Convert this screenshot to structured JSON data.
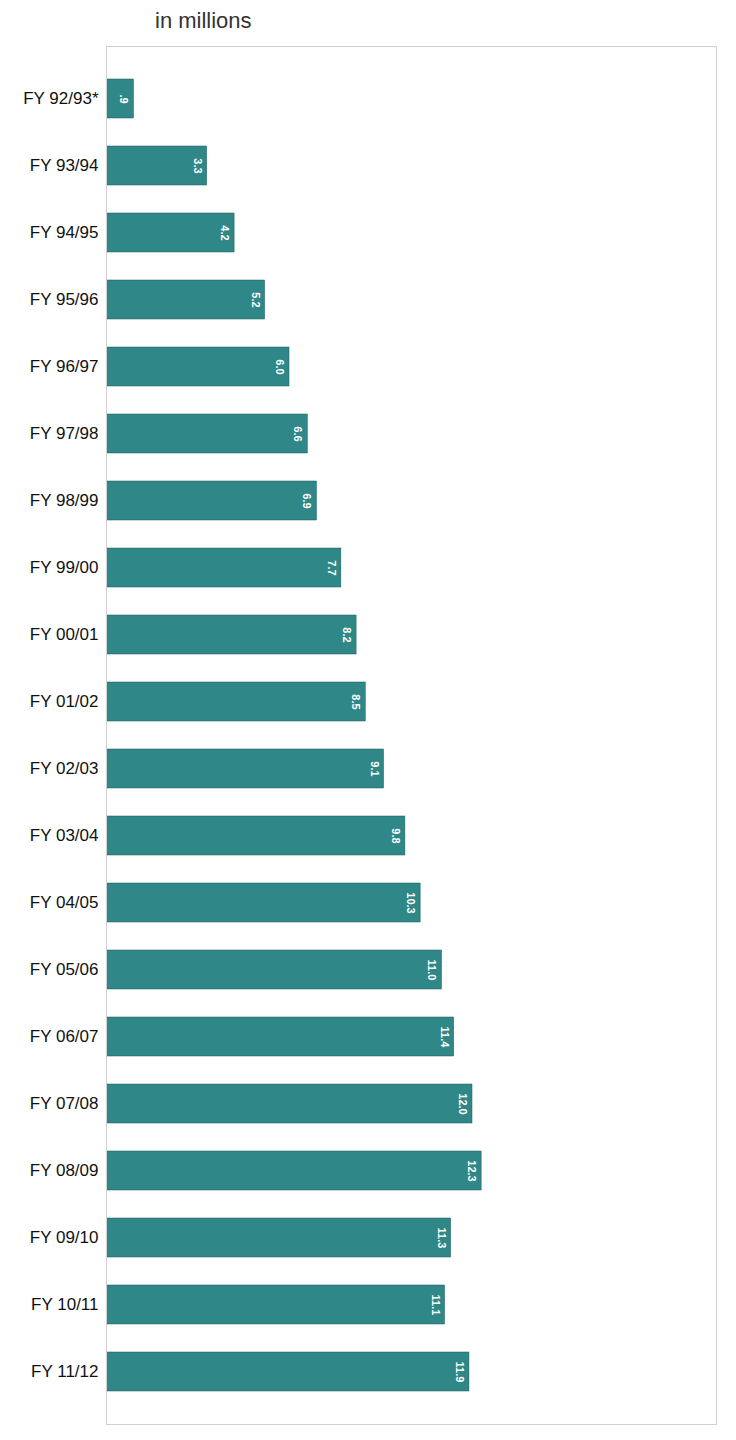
{
  "chart_data": {
    "type": "bar",
    "title": "in millions",
    "orientation": "horizontal",
    "categories": [
      "FY 92/93*",
      "FY 93/94",
      "FY 94/95",
      "FY 95/96",
      "FY 96/97",
      "FY 97/98",
      "FY 98/99",
      "FY 99/00",
      "FY 00/01",
      "FY 01/02",
      "FY 02/03",
      "FY 03/04",
      "FY 04/05",
      "FY 05/06",
      "FY 06/07",
      "FY 07/08",
      "FY 08/09",
      "FY 09/10",
      "FY 10/11",
      "FY 11/12"
    ],
    "values": [
      0.9,
      3.3,
      4.2,
      5.2,
      6.0,
      6.6,
      6.9,
      7.7,
      8.2,
      8.5,
      9.1,
      9.8,
      10.3,
      11.0,
      11.4,
      12.0,
      12.3,
      11.3,
      11.1,
      11.9
    ],
    "value_labels": [
      ".9",
      "3.3",
      "4.2",
      "5.2",
      "6.0",
      "6.6",
      "6.9",
      "7.7",
      "8.2",
      "8.5",
      "9.1",
      "9.8",
      "10.3",
      "11.0",
      "11.4",
      "12.0",
      "12.3",
      "11.3",
      "11.1",
      "11.9"
    ],
    "color": "#2f8787",
    "xlim": [
      0,
      20
    ],
    "grid": false,
    "data_labels": true,
    "tick_labels": "y"
  }
}
